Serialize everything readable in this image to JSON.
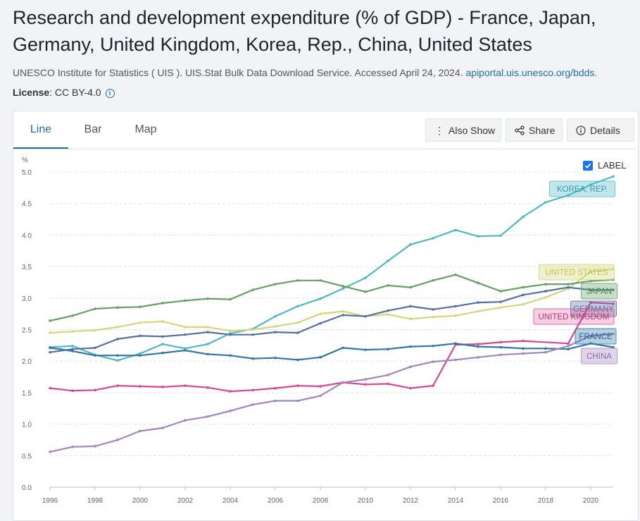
{
  "title": "Research and development expenditure (% of GDP) - France, Japan, Germany, United Kingdom, Korea, Rep., China, United States",
  "source": {
    "text": "UNESCO Institute for Statistics ( UIS ). UIS.Stat Bulk Data Download Service. Accessed April 24, 2024.",
    "link": "apiportal.uis.unesco.org/bdds."
  },
  "license": {
    "label": "License",
    "value": ": CC BY-4.0",
    "icon": "info-icon"
  },
  "tabs": [
    {
      "label": "Line",
      "active": true
    },
    {
      "label": "Bar",
      "active": false
    },
    {
      "label": "Map",
      "active": false
    }
  ],
  "buttons": {
    "also_show": {
      "label": "Also Show",
      "icon": "kebab-icon"
    },
    "share": {
      "label": "Share",
      "icon": "share-icon"
    },
    "details": {
      "label": "Details",
      "icon": "info-icon"
    }
  },
  "label_toggle": {
    "label": "LABEL",
    "checked": true
  },
  "chart_data": {
    "type": "line",
    "ylabel": "%",
    "ylim": [
      0,
      5
    ],
    "yticks": [
      "0.0",
      "0.5",
      "1.0",
      "1.5",
      "2.0",
      "2.5",
      "3.0",
      "3.5",
      "4.0",
      "4.5",
      "5.0"
    ],
    "xlim": [
      1996,
      2021
    ],
    "xticks": [
      "1996",
      "1998",
      "2000",
      "2002",
      "2004",
      "2006",
      "2008",
      "2010",
      "2012",
      "2014",
      "2016",
      "2018",
      "2020"
    ],
    "grid": true,
    "legend": "inline-labels-right",
    "x": [
      1996,
      1997,
      1998,
      1999,
      2000,
      2001,
      2002,
      2003,
      2004,
      2005,
      2006,
      2007,
      2008,
      2009,
      2010,
      2011,
      2012,
      2013,
      2014,
      2015,
      2016,
      2017,
      2018,
      2019,
      2020,
      2021
    ],
    "series": [
      {
        "name": "KOREA, REP.",
        "color": "#4fb8c6",
        "values": [
          2.22,
          2.24,
          2.1,
          2.01,
          2.12,
          2.27,
          2.2,
          2.27,
          2.44,
          2.51,
          2.71,
          2.87,
          2.99,
          3.15,
          3.32,
          3.59,
          3.85,
          3.95,
          4.08,
          3.98,
          3.99,
          4.29,
          4.52,
          4.63,
          4.8,
          4.93
        ]
      },
      {
        "name": "UNITED STATES",
        "color": "#d5d57a",
        "values": [
          2.45,
          2.47,
          2.49,
          2.54,
          2.61,
          2.63,
          2.54,
          2.54,
          2.48,
          2.5,
          2.55,
          2.61,
          2.75,
          2.79,
          2.71,
          2.74,
          2.67,
          2.7,
          2.72,
          2.79,
          2.85,
          2.9,
          3.01,
          3.15,
          3.42,
          3.46
        ]
      },
      {
        "name": "JAPAN",
        "color": "#62a163",
        "values": [
          2.64,
          2.72,
          2.83,
          2.85,
          2.86,
          2.92,
          2.96,
          2.99,
          2.98,
          3.13,
          3.22,
          3.28,
          3.28,
          3.19,
          3.1,
          3.2,
          3.17,
          3.28,
          3.37,
          3.24,
          3.11,
          3.17,
          3.22,
          3.22,
          3.27,
          3.29
        ]
      },
      {
        "name": "GERMANY",
        "color": "#56709f",
        "values": [
          2.14,
          2.19,
          2.21,
          2.35,
          2.4,
          2.39,
          2.42,
          2.46,
          2.42,
          2.42,
          2.46,
          2.45,
          2.6,
          2.73,
          2.71,
          2.8,
          2.87,
          2.82,
          2.87,
          2.93,
          2.94,
          3.05,
          3.11,
          3.17,
          3.13,
          3.13
        ]
      },
      {
        "name": "UNITED KINGDOM",
        "color": "#d9468e",
        "values": [
          1.57,
          1.53,
          1.54,
          1.61,
          1.6,
          1.59,
          1.61,
          1.58,
          1.52,
          1.54,
          1.57,
          1.61,
          1.6,
          1.66,
          1.63,
          1.64,
          1.57,
          1.61,
          2.26,
          2.27,
          2.3,
          2.32,
          null,
          2.28,
          2.93,
          2.91
        ]
      },
      {
        "name": "FRANCE",
        "color": "#2f77a8",
        "values": [
          2.21,
          2.16,
          2.09,
          2.09,
          2.09,
          2.13,
          2.17,
          2.11,
          2.09,
          2.04,
          2.05,
          2.02,
          2.06,
          2.21,
          2.18,
          2.19,
          2.23,
          2.24,
          2.28,
          2.23,
          2.22,
          2.2,
          2.2,
          2.19,
          2.28,
          2.22
        ]
      },
      {
        "name": "CHINA",
        "color": "#a485bd",
        "values": [
          0.56,
          0.64,
          0.65,
          0.75,
          0.89,
          0.94,
          1.06,
          1.12,
          1.21,
          1.31,
          1.37,
          1.37,
          1.45,
          1.66,
          1.71,
          1.78,
          1.91,
          1.99,
          2.02,
          2.06,
          2.1,
          2.12,
          2.14,
          2.24,
          2.4,
          2.43
        ]
      }
    ]
  }
}
